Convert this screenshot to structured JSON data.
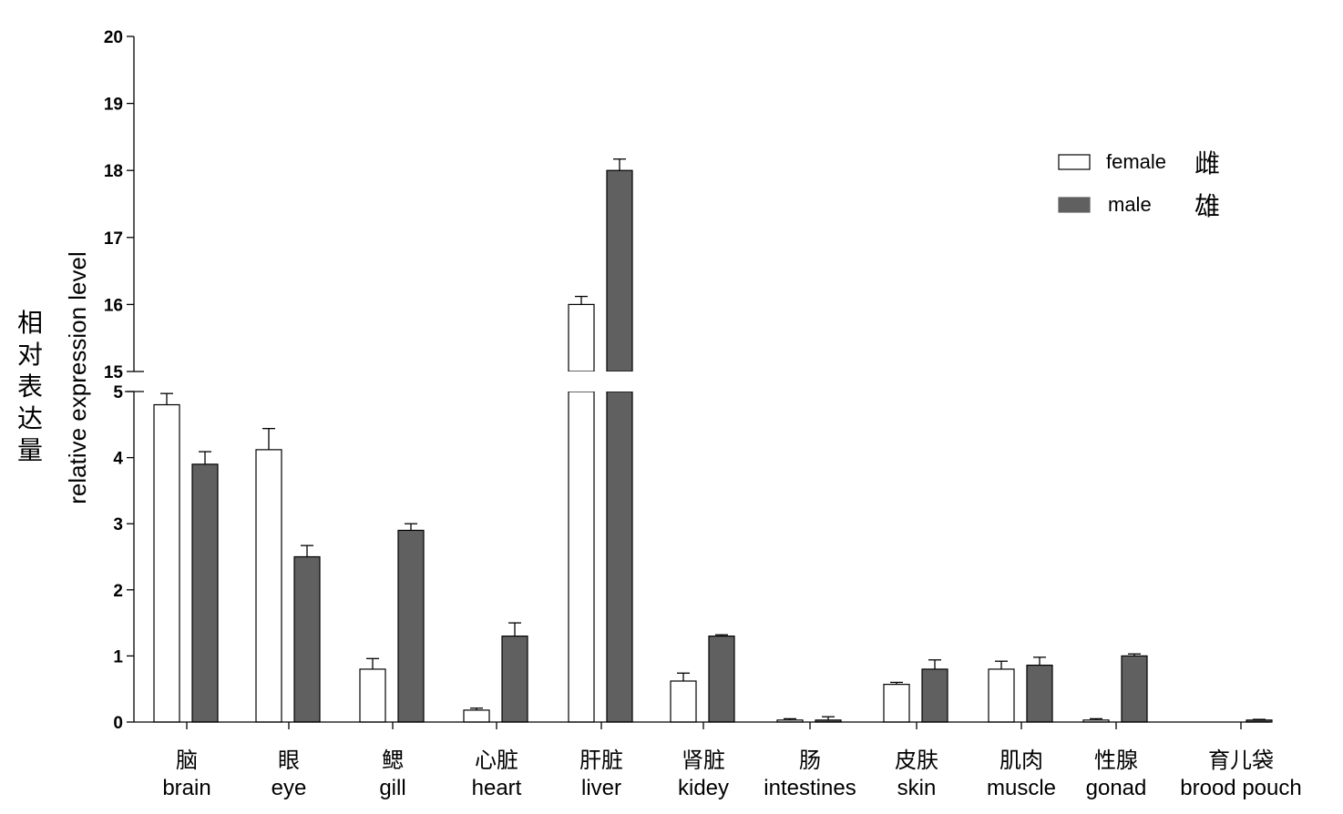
{
  "chart_data": {
    "type": "bar",
    "title": "",
    "ylabel": "relative expression level",
    "ylabel_cn": [
      "相",
      "对",
      "表",
      "达",
      "量"
    ],
    "axis_break": {
      "lower_range": [
        0,
        5
      ],
      "upper_range": [
        15,
        20
      ]
    },
    "yticks_lower": [
      "0",
      "1",
      "2",
      "3",
      "4",
      "5"
    ],
    "yticks_upper": [
      "15",
      "16",
      "17",
      "18",
      "19",
      "20"
    ],
    "categories": [
      {
        "cn": "脑",
        "en": "brain"
      },
      {
        "cn": "眼",
        "en": "eye"
      },
      {
        "cn": "鳃",
        "en": "gill"
      },
      {
        "cn": "心脏",
        "en": "heart"
      },
      {
        "cn": "肝脏",
        "en": "liver"
      },
      {
        "cn": "肾脏",
        "en": "kidey"
      },
      {
        "cn": "肠",
        "en": "intestines"
      },
      {
        "cn": "皮肤",
        "en": "skin"
      },
      {
        "cn": "肌肉",
        "en": "muscle"
      },
      {
        "cn": "性腺",
        "en": "gonad"
      },
      {
        "cn": "育儿袋",
        "en": "brood pouch"
      }
    ],
    "series": [
      {
        "name": "female",
        "name_cn": "雌",
        "color": "#ffffff",
        "values": [
          4.8,
          4.12,
          0.8,
          0.18,
          16.0,
          0.62,
          0.03,
          0.57,
          0.8,
          0.03,
          null
        ],
        "errors": [
          0.17,
          0.32,
          0.16,
          0.03,
          0.12,
          0.12,
          0.02,
          0.03,
          0.12,
          0.02,
          null
        ]
      },
      {
        "name": "male",
        "name_cn": "雄",
        "color": "#606060",
        "values": [
          3.9,
          2.5,
          2.9,
          1.3,
          18.0,
          1.3,
          0.03,
          0.8,
          0.86,
          1.0,
          0.03
        ],
        "errors": [
          0.19,
          0.17,
          0.1,
          0.2,
          0.17,
          0.02,
          0.05,
          0.14,
          0.12,
          0.03,
          0.01
        ]
      }
    ],
    "legend_position": "top-right",
    "grid": false
  }
}
